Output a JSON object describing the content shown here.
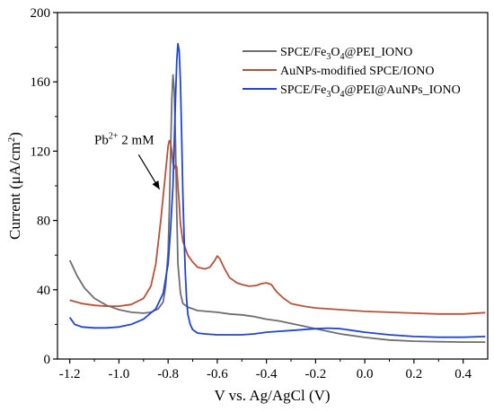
{
  "chart_data": {
    "type": "line",
    "xlabel": "V vs. Ag/AgCl (V)",
    "ylabel_main": "Current (μA/cm",
    "ylabel_sup": "2",
    "ylabel_close": ")",
    "xlim": [
      -1.25,
      0.5
    ],
    "ylim": [
      0,
      200
    ],
    "x_ticks": [
      -1.2,
      -1.0,
      -0.8,
      -0.6,
      -0.4,
      -0.2,
      0.0,
      0.2,
      0.4
    ],
    "x_tick_labels": [
      "-1.2",
      "-1.0",
      "-0.8",
      "-0.6",
      "-0.4",
      "-0.2",
      "0.0",
      "0.2",
      "0.4"
    ],
    "y_ticks": [
      0,
      40,
      80,
      120,
      160,
      200
    ],
    "y_tick_labels": [
      "0",
      "40",
      "80",
      "120",
      "160",
      "200"
    ],
    "grid": false,
    "legend_position": "top-right",
    "annotation": {
      "base": "Pb",
      "sup": "2+",
      "rest": " 2 mM",
      "text_at": [
        -1.1,
        124
      ],
      "arrow_from": [
        -0.92,
        118
      ],
      "arrow_to": [
        -0.835,
        98
      ]
    },
    "series": [
      {
        "name_parts": [
          [
            "SPCE/Fe",
            "n"
          ],
          [
            "3",
            "sub"
          ],
          [
            "O",
            "n"
          ],
          [
            "4",
            "sub"
          ],
          [
            "@PEI_IONO",
            "n"
          ]
        ],
        "color": "#6e6e6e",
        "x": [
          -1.2,
          -1.17,
          -1.14,
          -1.1,
          -1.05,
          -1.0,
          -0.95,
          -0.9,
          -0.87,
          -0.84,
          -0.82,
          -0.81,
          -0.8,
          -0.795,
          -0.79,
          -0.785,
          -0.78,
          -0.775,
          -0.77,
          -0.765,
          -0.76,
          -0.75,
          -0.74,
          -0.72,
          -0.68,
          -0.6,
          -0.55,
          -0.5,
          -0.45,
          -0.4,
          -0.35,
          -0.3,
          -0.25,
          -0.2,
          -0.15,
          -0.1,
          0.0,
          0.1,
          0.2,
          0.3,
          0.4,
          0.49
        ],
        "y": [
          57,
          48,
          41,
          35,
          31,
          28.5,
          27,
          26.5,
          27,
          29,
          33,
          42,
          62,
          85,
          118,
          150,
          164,
          155,
          125,
          85,
          55,
          38,
          32,
          30,
          28,
          27,
          26,
          25.5,
          24.5,
          23,
          22,
          20.5,
          19,
          17.5,
          16,
          14.5,
          12.5,
          11,
          10.3,
          10,
          9.8,
          9.8
        ]
      },
      {
        "name_parts": [
          [
            "AuNPs-modified SPCE/IONO",
            "n"
          ]
        ],
        "color": "#b5523b",
        "x": [
          -1.2,
          -1.15,
          -1.1,
          -1.05,
          -1.0,
          -0.95,
          -0.9,
          -0.87,
          -0.85,
          -0.83,
          -0.81,
          -0.8,
          -0.795,
          -0.79,
          -0.785,
          -0.78,
          -0.775,
          -0.77,
          -0.765,
          -0.76,
          -0.755,
          -0.75,
          -0.74,
          -0.72,
          -0.7,
          -0.68,
          -0.65,
          -0.63,
          -0.61,
          -0.6,
          -0.59,
          -0.57,
          -0.55,
          -0.52,
          -0.5,
          -0.47,
          -0.44,
          -0.42,
          -0.4,
          -0.38,
          -0.36,
          -0.33,
          -0.3,
          -0.25,
          -0.2,
          -0.1,
          0.0,
          0.1,
          0.2,
          0.3,
          0.4,
          0.49
        ],
        "y": [
          34,
          32,
          31,
          30.5,
          30.5,
          31.5,
          35,
          42,
          55,
          80,
          108,
          123,
          126,
          125,
          120,
          113,
          110,
          112,
          111,
          100,
          90,
          78,
          68,
          60,
          56,
          53,
          52,
          53,
          57,
          59.5,
          58,
          52,
          47,
          44,
          43,
          42,
          42.5,
          43.5,
          44,
          43,
          39,
          35,
          32,
          30.5,
          29.5,
          28.5,
          27.5,
          27,
          26.5,
          26,
          26,
          26.8
        ]
      },
      {
        "name_parts": [
          [
            "SPCE/Fe",
            "n"
          ],
          [
            "3",
            "sub"
          ],
          [
            "O",
            "n"
          ],
          [
            "4",
            "sub"
          ],
          [
            "@PEI@AuNPs_IONO",
            "n"
          ]
        ],
        "color": "#1f44d6",
        "x": [
          -1.2,
          -1.18,
          -1.15,
          -1.1,
          -1.05,
          -1.0,
          -0.95,
          -0.9,
          -0.85,
          -0.82,
          -0.8,
          -0.79,
          -0.78,
          -0.775,
          -0.77,
          -0.765,
          -0.76,
          -0.755,
          -0.75,
          -0.745,
          -0.74,
          -0.735,
          -0.73,
          -0.725,
          -0.72,
          -0.71,
          -0.7,
          -0.68,
          -0.65,
          -0.6,
          -0.55,
          -0.5,
          -0.45,
          -0.4,
          -0.35,
          -0.3,
          -0.25,
          -0.2,
          -0.15,
          -0.1,
          -0.05,
          0.0,
          0.1,
          0.2,
          0.3,
          0.4,
          0.49
        ],
        "y": [
          24,
          20,
          18.5,
          18,
          18,
          18.5,
          20,
          23,
          29,
          38,
          55,
          75,
          100,
          125,
          150,
          172,
          182,
          178,
          160,
          130,
          95,
          70,
          50,
          35,
          26,
          20,
          17,
          15,
          14.5,
          14,
          14,
          14,
          14.5,
          15.5,
          16,
          16.5,
          17,
          17.5,
          17.8,
          17.5,
          16.5,
          15.5,
          14,
          13,
          12.6,
          12.6,
          13
        ]
      }
    ]
  }
}
